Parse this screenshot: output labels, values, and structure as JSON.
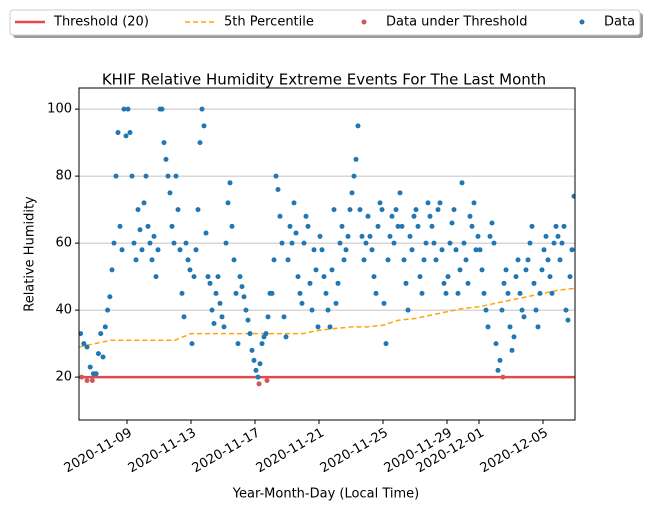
{
  "chart_data": {
    "type": "scatter",
    "title": "KHIF Relative Humidity Extreme Events For The Last Month",
    "x_label": "Year-Month-Day (Local Time)",
    "y_label": "Relative Humidity",
    "xlim": [
      "2020-11-06",
      "2020-12-07"
    ],
    "ylim": [
      7.2,
      106.3
    ],
    "xticks": [
      "2020-11-09",
      "2020-11-13",
      "2020-11-17",
      "2020-11-21",
      "2020-11-25",
      "2020-11-29",
      "2020-12-01",
      "2020-12-05"
    ],
    "yticks": [
      20,
      40,
      60,
      80,
      100
    ],
    "grid": "y",
    "legend": "top",
    "series": [
      {
        "name": "Threshold (20)",
        "color": "#e24a4a",
        "mark": "line",
        "values": [
          20
        ]
      },
      {
        "name": "5th Percentile",
        "color": "#ffa500",
        "mark": "dashed-line",
        "x": [
          "2020-11-06",
          "2020-11-07",
          "2020-11-08",
          "2020-11-09",
          "2020-11-10",
          "2020-11-11",
          "2020-11-12",
          "2020-11-13",
          "2020-11-14",
          "2020-11-15",
          "2020-11-16",
          "2020-11-17",
          "2020-11-18",
          "2020-11-19",
          "2020-11-20",
          "2020-11-21",
          "2020-11-22",
          "2020-11-23",
          "2020-11-24",
          "2020-11-25",
          "2020-11-26",
          "2020-11-27",
          "2020-11-28",
          "2020-11-29",
          "2020-11-30",
          "2020-12-01",
          "2020-12-02",
          "2020-12-03",
          "2020-12-04",
          "2020-12-05",
          "2020-12-06",
          "2020-12-07"
        ],
        "values": [
          29,
          30,
          31,
          31,
          31,
          31,
          31,
          33,
          33,
          33,
          33,
          33,
          33,
          33,
          33,
          34,
          34.5,
          35,
          35,
          35.5,
          37,
          37.5,
          38.5,
          39.5,
          40.5,
          41,
          42,
          43,
          44,
          45,
          46,
          46.5
        ]
      },
      {
        "name": "Data under Threshold",
        "color": "#d1585a",
        "mark": "dot",
        "x": [
          "2020-11-06",
          "2020-11-06",
          "2020-11-06",
          "2020-11-17",
          "2020-11-17",
          "2020-12-02"
        ],
        "values": [
          20,
          19,
          19,
          18,
          19,
          20
        ]
      },
      {
        "name": "Data",
        "color": "#1f77b4",
        "mark": "dot",
        "x": [
          "2020-11-06",
          "2020-11-06",
          "2020-11-06",
          "2020-11-06",
          "2020-11-06",
          "2020-11-07",
          "2020-11-07",
          "2020-11-07",
          "2020-11-07",
          "2020-11-07",
          "2020-11-07",
          "2020-11-07",
          "2020-11-08",
          "2020-11-08",
          "2020-11-08",
          "2020-11-08",
          "2020-11-08",
          "2020-11-08",
          "2020-11-08",
          "2020-11-08",
          "2020-11-09",
          "2020-11-09",
          "2020-11-09",
          "2020-11-09",
          "2020-11-09",
          "2020-11-09",
          "2020-11-09",
          "2020-11-09",
          "2020-11-10",
          "2020-11-10",
          "2020-11-10",
          "2020-11-10",
          "2020-11-10",
          "2020-11-10",
          "2020-11-10",
          "2020-11-10",
          "2020-11-11",
          "2020-11-11",
          "2020-11-11",
          "2020-11-11",
          "2020-11-11",
          "2020-11-11",
          "2020-11-11",
          "2020-11-11",
          "2020-11-12",
          "2020-11-12",
          "2020-11-12",
          "2020-11-12",
          "2020-11-12",
          "2020-11-12",
          "2020-11-12",
          "2020-11-12",
          "2020-11-13",
          "2020-11-13",
          "2020-11-13",
          "2020-11-13",
          "2020-11-13",
          "2020-11-13",
          "2020-11-13",
          "2020-11-13",
          "2020-11-14",
          "2020-11-14",
          "2020-11-14",
          "2020-11-14",
          "2020-11-14",
          "2020-11-14",
          "2020-11-14",
          "2020-11-14",
          "2020-11-15",
          "2020-11-15",
          "2020-11-15",
          "2020-11-15",
          "2020-11-15",
          "2020-11-15",
          "2020-11-15",
          "2020-11-15",
          "2020-11-16",
          "2020-11-16",
          "2020-11-16",
          "2020-11-16",
          "2020-11-16",
          "2020-11-16",
          "2020-11-16",
          "2020-11-16",
          "2020-11-17",
          "2020-11-17",
          "2020-11-17",
          "2020-11-17",
          "2020-11-17",
          "2020-11-17",
          "2020-11-17",
          "2020-11-17",
          "2020-11-18",
          "2020-11-18",
          "2020-11-18",
          "2020-11-18",
          "2020-11-18",
          "2020-11-18",
          "2020-11-18",
          "2020-11-18",
          "2020-11-19",
          "2020-11-19",
          "2020-11-19",
          "2020-11-19",
          "2020-11-19",
          "2020-11-19",
          "2020-11-19",
          "2020-11-19",
          "2020-11-20",
          "2020-11-20",
          "2020-11-20",
          "2020-11-20",
          "2020-11-20",
          "2020-11-20",
          "2020-11-20",
          "2020-11-20",
          "2020-11-21",
          "2020-11-21",
          "2020-11-21",
          "2020-11-21",
          "2020-11-21",
          "2020-11-21",
          "2020-11-21",
          "2020-11-21",
          "2020-11-22",
          "2020-11-22",
          "2020-11-22",
          "2020-11-22",
          "2020-11-22",
          "2020-11-22",
          "2020-11-22",
          "2020-11-22",
          "2020-11-23",
          "2020-11-23",
          "2020-11-23",
          "2020-11-23",
          "2020-11-23",
          "2020-11-23",
          "2020-11-23",
          "2020-11-23",
          "2020-11-24",
          "2020-11-24",
          "2020-11-24",
          "2020-11-24",
          "2020-11-24",
          "2020-11-24",
          "2020-11-24",
          "2020-11-24",
          "2020-11-25",
          "2020-11-25",
          "2020-11-25",
          "2020-11-25",
          "2020-11-25",
          "2020-11-25",
          "2020-11-25",
          "2020-11-25",
          "2020-11-26",
          "2020-11-26",
          "2020-11-26",
          "2020-11-26",
          "2020-11-26",
          "2020-11-26",
          "2020-11-26",
          "2020-11-26",
          "2020-11-27",
          "2020-11-27",
          "2020-11-27",
          "2020-11-27",
          "2020-11-27",
          "2020-11-27",
          "2020-11-27",
          "2020-11-27",
          "2020-11-28",
          "2020-11-28",
          "2020-11-28",
          "2020-11-28",
          "2020-11-28",
          "2020-11-28",
          "2020-11-28",
          "2020-11-28",
          "2020-11-29",
          "2020-11-29",
          "2020-11-29",
          "2020-11-29",
          "2020-11-29",
          "2020-11-29",
          "2020-11-29",
          "2020-11-29",
          "2020-11-30",
          "2020-11-30",
          "2020-11-30",
          "2020-11-30",
          "2020-11-30",
          "2020-11-30",
          "2020-11-30",
          "2020-11-30",
          "2020-12-01",
          "2020-12-01",
          "2020-12-01",
          "2020-12-01",
          "2020-12-01",
          "2020-12-01",
          "2020-12-01",
          "2020-12-01",
          "2020-12-02",
          "2020-12-02",
          "2020-12-02",
          "2020-12-02",
          "2020-12-02",
          "2020-12-02",
          "2020-12-02",
          "2020-12-02",
          "2020-12-03",
          "2020-12-03",
          "2020-12-03",
          "2020-12-03",
          "2020-12-03",
          "2020-12-03",
          "2020-12-03",
          "2020-12-03",
          "2020-12-04",
          "2020-12-04",
          "2020-12-04",
          "2020-12-04",
          "2020-12-04",
          "2020-12-04",
          "2020-12-04",
          "2020-12-04",
          "2020-12-05",
          "2020-12-05",
          "2020-12-05",
          "2020-12-05",
          "2020-12-05",
          "2020-12-05",
          "2020-12-05",
          "2020-12-05",
          "2020-12-06",
          "2020-12-06",
          "2020-12-06",
          "2020-12-06",
          "2020-12-06",
          "2020-12-06",
          "2020-12-06",
          "2020-12-06"
        ],
        "values": [
          33,
          30,
          29,
          23,
          21,
          21,
          27,
          33,
          26,
          35,
          40,
          44,
          52,
          60,
          80,
          93,
          65,
          58,
          100,
          92,
          100,
          93,
          80,
          60,
          55,
          70,
          64,
          58,
          72,
          80,
          65,
          60,
          55,
          62,
          50,
          58,
          100,
          100,
          90,
          85,
          80,
          75,
          65,
          60,
          80,
          70,
          58,
          45,
          38,
          60,
          55,
          52,
          30,
          50,
          58,
          70,
          90,
          100,
          95,
          63,
          50,
          48,
          40,
          36,
          45,
          50,
          42,
          38,
          35,
          60,
          72,
          78,
          65,
          55,
          45,
          30,
          50,
          47,
          44,
          40,
          37,
          33,
          28,
          25,
          22,
          20,
          24,
          30,
          32,
          33,
          38,
          45,
          45,
          55,
          80,
          76,
          68,
          60,
          38,
          32,
          55,
          65,
          60,
          72,
          63,
          50,
          45,
          42,
          60,
          68,
          65,
          48,
          40,
          58,
          52,
          35,
          62,
          58,
          50,
          45,
          40,
          35,
          52,
          70,
          42,
          48,
          60,
          65,
          55,
          58,
          62,
          70,
          75,
          80,
          85,
          95,
          70,
          62,
          55,
          60,
          68,
          62,
          58,
          50,
          45,
          65,
          72,
          70,
          42,
          30,
          55,
          62,
          68,
          60,
          70,
          65,
          75,
          65,
          55,
          48,
          40,
          62,
          58,
          68,
          70,
          65,
          50,
          45,
          55,
          60,
          72,
          68,
          65,
          60,
          55,
          70,
          72,
          58,
          48,
          45,
          50,
          60,
          66,
          70,
          58,
          45,
          52,
          78,
          60,
          55,
          48,
          68,
          65,
          72,
          58,
          62,
          58,
          52,
          45,
          40,
          35,
          62,
          66,
          60,
          30,
          22,
          25,
          40,
          48,
          52,
          45,
          35,
          28,
          32,
          50,
          55,
          45,
          40,
          38,
          52,
          55,
          60,
          65,
          48,
          40,
          35,
          45,
          52,
          58,
          62,
          55,
          50,
          45,
          60,
          65,
          62,
          55,
          60,
          65,
          40,
          37,
          50,
          58,
          74
        ]
      }
    ]
  }
}
